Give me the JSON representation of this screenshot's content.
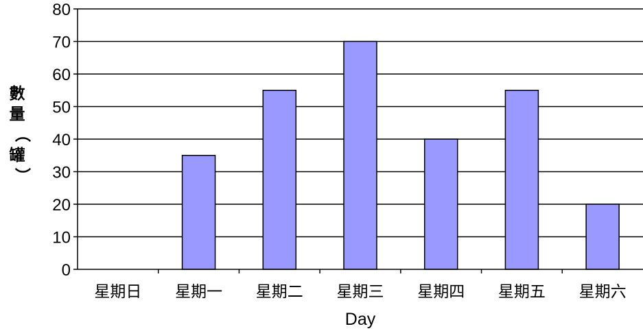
{
  "chart_data": {
    "type": "bar",
    "categories": [
      "星期日",
      "星期一",
      "星期二",
      "星期三",
      "星期四",
      "星期五",
      "星期六"
    ],
    "values": [
      0,
      35,
      55,
      70,
      40,
      55,
      20
    ],
    "title": "",
    "xlabel": "Day",
    "ylabel_chars": [
      "數",
      "量",
      "（",
      "罐",
      "）"
    ],
    "ylim": [
      0,
      80
    ],
    "yticks": [
      0,
      10,
      20,
      30,
      40,
      50,
      60,
      70,
      80
    ],
    "grid": true,
    "bar_color": "#9999ff",
    "bar_edge_color": "#000000"
  }
}
